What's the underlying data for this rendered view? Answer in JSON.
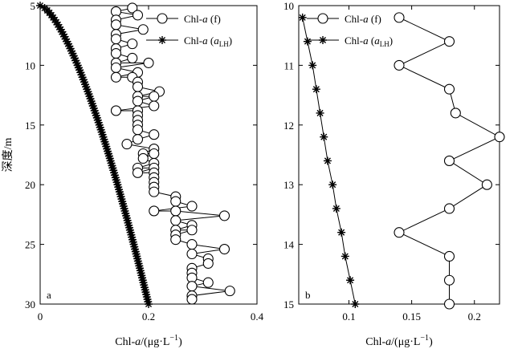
{
  "chart_data": [
    {
      "type": "line",
      "panel_label": "a",
      "xlabel": "Chl-a/(μg·L⁻¹)",
      "ylabel": "深度/m",
      "xlim": [
        0,
        0.4
      ],
      "ylim": [
        5,
        30
      ],
      "y_reversed": true,
      "xticks": [
        "0",
        "0.2",
        "0.4"
      ],
      "yticks": [
        "5",
        "10",
        "15",
        "20",
        "25",
        "30"
      ],
      "legend_position": "top-right",
      "series": [
        {
          "name": "Chl-a (f)",
          "marker": "circle",
          "points": [
            [
              0.17,
              5.2
            ],
            [
              0.14,
              5.5
            ],
            [
              0.18,
              5.8
            ],
            [
              0.14,
              6.2
            ],
            [
              0.14,
              6.6
            ],
            [
              0.19,
              7.0
            ],
            [
              0.14,
              7.4
            ],
            [
              0.14,
              7.8
            ],
            [
              0.17,
              8.2
            ],
            [
              0.14,
              8.6
            ],
            [
              0.14,
              9.0
            ],
            [
              0.17,
              9.4
            ],
            [
              0.14,
              9.8
            ],
            [
              0.2,
              9.8
            ],
            [
              0.14,
              10.2
            ],
            [
              0.18,
              10.6
            ],
            [
              0.14,
              11.0
            ],
            [
              0.17,
              11.0
            ],
            [
              0.18,
              11.4
            ],
            [
              0.18,
              11.8
            ],
            [
              0.22,
              12.2
            ],
            [
              0.18,
              12.6
            ],
            [
              0.21,
              12.6
            ],
            [
              0.18,
              13.0
            ],
            [
              0.21,
              13.4
            ],
            [
              0.14,
              13.8
            ],
            [
              0.18,
              13.8
            ],
            [
              0.18,
              14.2
            ],
            [
              0.18,
              14.6
            ],
            [
              0.18,
              15.0
            ],
            [
              0.18,
              15.4
            ],
            [
              0.21,
              15.8
            ],
            [
              0.18,
              16.2
            ],
            [
              0.16,
              16.6
            ],
            [
              0.21,
              17.0
            ],
            [
              0.19,
              17.4
            ],
            [
              0.21,
              17.4
            ],
            [
              0.19,
              17.8
            ],
            [
              0.21,
              18.2
            ],
            [
              0.18,
              18.6
            ],
            [
              0.21,
              18.6
            ],
            [
              0.18,
              19.0
            ],
            [
              0.21,
              19.0
            ],
            [
              0.21,
              19.4
            ],
            [
              0.21,
              19.8
            ],
            [
              0.21,
              20.2
            ],
            [
              0.21,
              20.6
            ],
            [
              0.25,
              21.0
            ],
            [
              0.25,
              21.4
            ],
            [
              0.28,
              21.8
            ],
            [
              0.21,
              22.2
            ],
            [
              0.25,
              22.2
            ],
            [
              0.34,
              22.6
            ],
            [
              0.25,
              23.0
            ],
            [
              0.28,
              23.4
            ],
            [
              0.25,
              23.8
            ],
            [
              0.28,
              23.8
            ],
            [
              0.25,
              24.2
            ],
            [
              0.25,
              24.6
            ],
            [
              0.28,
              25.0
            ],
            [
              0.34,
              25.4
            ],
            [
              0.28,
              25.8
            ],
            [
              0.31,
              26.2
            ],
            [
              0.31,
              26.6
            ],
            [
              0.28,
              27.0
            ],
            [
              0.28,
              27.4
            ],
            [
              0.28,
              27.8
            ],
            [
              0.31,
              28.2
            ],
            [
              0.28,
              28.5
            ],
            [
              0.35,
              28.9
            ],
            [
              0.28,
              29.3
            ],
            [
              0.28,
              29.6
            ]
          ]
        },
        {
          "name": "Chl-a (a_LH)",
          "marker": "asterisk",
          "curve": {
            "y_min": 5,
            "y_max": 30,
            "x_at_min": 0,
            "x_at_max": 0.2,
            "exponent": 0.66,
            "count": 126
          }
        }
      ]
    },
    {
      "type": "line",
      "panel_label": "b",
      "xlabel": "Chl-a/(μg·L⁻¹)",
      "xlim": [
        0.06,
        0.22
      ],
      "ylim": [
        10,
        15
      ],
      "y_reversed": true,
      "xticks": [
        "0.1",
        "0.15",
        "0.2"
      ],
      "yticks": [
        "10",
        "11",
        "12",
        "13",
        "14",
        "15"
      ],
      "legend_position": "top-left",
      "series": [
        {
          "name": "Chl-a (f)",
          "marker": "circle",
          "points": [
            [
              0.14,
              10.2
            ],
            [
              0.18,
              10.6
            ],
            [
              0.14,
              11.0
            ],
            [
              0.18,
              11.4
            ],
            [
              0.185,
              11.8
            ],
            [
              0.22,
              12.2
            ],
            [
              0.18,
              12.6
            ],
            [
              0.21,
              13.0
            ],
            [
              0.18,
              13.4
            ],
            [
              0.14,
              13.8
            ],
            [
              0.18,
              14.2
            ],
            [
              0.18,
              14.6
            ],
            [
              0.18,
              15.0
            ]
          ]
        },
        {
          "name": "Chl-a (a_LH)",
          "marker": "asterisk",
          "points": [
            [
              0.063,
              10.2
            ],
            [
              0.067,
              10.6
            ],
            [
              0.071,
              11.0
            ],
            [
              0.074,
              11.4
            ],
            [
              0.077,
              11.8
            ],
            [
              0.08,
              12.2
            ],
            [
              0.083,
              12.6
            ],
            [
              0.087,
              13.0
            ],
            [
              0.09,
              13.4
            ],
            [
              0.094,
              13.8
            ],
            [
              0.097,
              14.2
            ],
            [
              0.101,
              14.6
            ],
            [
              0.105,
              15.0
            ]
          ]
        }
      ]
    }
  ],
  "legend": {
    "f_prefix": "Chl-",
    "f_italic": "a",
    "f_suffix": " (f)",
    "lh_prefix": "Chl-",
    "lh_italic": "a",
    "lh_paren_open": " (",
    "lh_sub_italic": "a",
    "lh_sub": "LH",
    "lh_paren_close": ")"
  },
  "axis_text": {
    "x_prefix": "Chl-",
    "x_italic": "a",
    "x_suffix": "/(μg·L",
    "x_exp": "−1",
    "x_close": ")",
    "y_label": "深度/m"
  }
}
